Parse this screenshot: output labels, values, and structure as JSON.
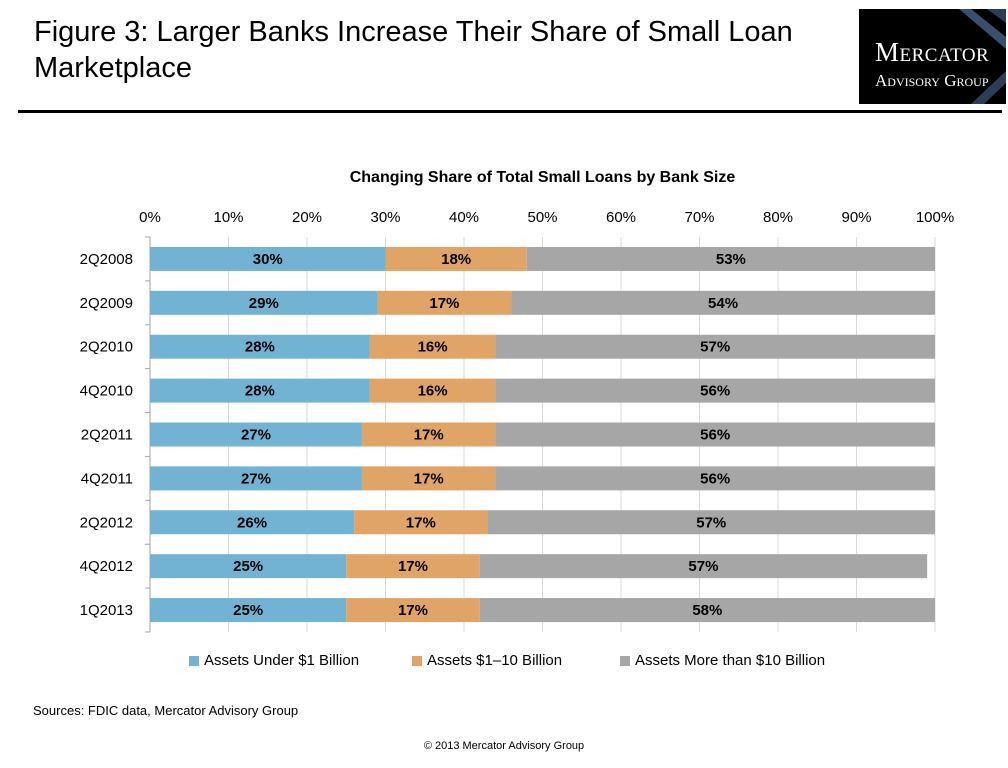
{
  "figure_title": "Figure 3: Larger Banks Increase Their Share of Small Loan Marketplace",
  "logo": {
    "line1": "Mercator",
    "line2": "Advisory Group"
  },
  "sources": "Sources:  FDIC data, Mercator Advisory Group",
  "copyright": "© 2013 Mercator Advisory Group",
  "colors": {
    "under1b": "#72b3d3",
    "b1to10": "#e0a566",
    "over10b": "#a6a6a6"
  },
  "chart_data": {
    "type": "bar",
    "orientation": "horizontal",
    "stacked": true,
    "title": "Changing Share of Total Small Loans by Bank Size",
    "xlim": [
      0,
      100
    ],
    "x_ticks": [
      "0%",
      "10%",
      "20%",
      "30%",
      "40%",
      "50%",
      "60%",
      "70%",
      "80%",
      "90%",
      "100%"
    ],
    "x_axis_position": "top",
    "legend_position": "bottom",
    "categories": [
      "2Q2008",
      "2Q2009",
      "2Q2010",
      "4Q2010",
      "2Q2011",
      "4Q2011",
      "2Q2012",
      "4Q2012",
      "1Q2013"
    ],
    "series": [
      {
        "name": "Assets Under $1 Billion",
        "values": [
          30,
          29,
          28,
          28,
          27,
          27,
          26,
          25,
          25
        ],
        "labels": [
          "30%",
          "29%",
          "28%",
          "28%",
          "27%",
          "27%",
          "26%",
          "25%",
          "25%"
        ]
      },
      {
        "name": "Assets  $1–10 Billion",
        "values": [
          18,
          17,
          16,
          16,
          17,
          17,
          17,
          17,
          17
        ],
        "labels": [
          "18%",
          "17%",
          "16%",
          "16%",
          "17%",
          "17%",
          "17%",
          "17%",
          "17%"
        ]
      },
      {
        "name": "Assets More than $10 Billion",
        "values": [
          53,
          54,
          57,
          56,
          56,
          56,
          57,
          57,
          58
        ],
        "labels": [
          "53%",
          "54%",
          "57%",
          "56%",
          "56%",
          "56%",
          "57%",
          "57%",
          "58%"
        ]
      }
    ]
  }
}
